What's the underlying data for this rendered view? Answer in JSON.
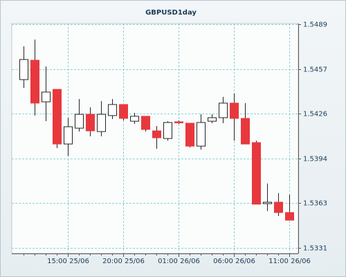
{
  "chart_data": {
    "type": "candlestick",
    "title": "GBPUSD1day",
    "categories": [
      null,
      null,
      null,
      null,
      "15:00 25/06",
      null,
      null,
      null,
      null,
      "20:00 25/06",
      null,
      null,
      null,
      null,
      "01:00 26/06",
      null,
      null,
      null,
      null,
      "06:00 26/06",
      null,
      null,
      null,
      null,
      "11:00 26/06"
    ],
    "series": [
      {
        "name": "open",
        "values": [
          1.54499,
          1.54636,
          1.54342,
          1.5443,
          1.54044,
          1.54156,
          1.54254,
          1.54132,
          1.54245,
          1.54323,
          1.54205,
          1.5424,
          1.54137,
          1.54083,
          1.54201,
          1.54191,
          1.54029,
          1.54205,
          1.5423,
          1.54333,
          1.54225,
          1.54054,
          1.53623,
          1.53633,
          1.5356
        ]
      },
      {
        "name": "high",
        "values": [
          1.54734,
          1.54782,
          1.54592,
          1.5443,
          1.5423,
          1.54362,
          1.54303,
          1.54347,
          1.54362,
          1.54323,
          1.54264,
          1.5424,
          1.54171,
          1.54205,
          1.5421,
          1.54191,
          1.54254,
          1.54254,
          1.54377,
          1.54401,
          1.54333,
          1.54068,
          1.53765,
          1.53697,
          1.53687
        ]
      },
      {
        "name": "low",
        "values": [
          1.5444,
          1.54245,
          1.54205,
          1.54015,
          1.53961,
          1.54132,
          1.54098,
          1.54098,
          1.5422,
          1.5421,
          1.54186,
          1.54132,
          1.5401,
          1.54068,
          1.54186,
          1.5402,
          1.54005,
          1.54191,
          1.54191,
          1.54068,
          1.54044,
          1.53619,
          1.5357,
          1.53535,
          1.53506
        ]
      },
      {
        "name": "close",
        "values": [
          1.54641,
          1.54333,
          1.54411,
          1.54044,
          1.54166,
          1.54254,
          1.54137,
          1.54254,
          1.54323,
          1.54225,
          1.5424,
          1.54147,
          1.54088,
          1.54196,
          1.54196,
          1.54029,
          1.54196,
          1.5423,
          1.54333,
          1.54225,
          1.54044,
          1.53619,
          1.53633,
          1.5356,
          1.53506
        ]
      }
    ],
    "up_color": "#ffffff",
    "down_color": "#e8383d",
    "ylim": [
      1.53271,
      1.54895
    ],
    "yticks": [
      1.5331,
      1.5363,
      1.5394,
      1.5426,
      1.5457,
      1.5489
    ],
    "grid": true
  }
}
